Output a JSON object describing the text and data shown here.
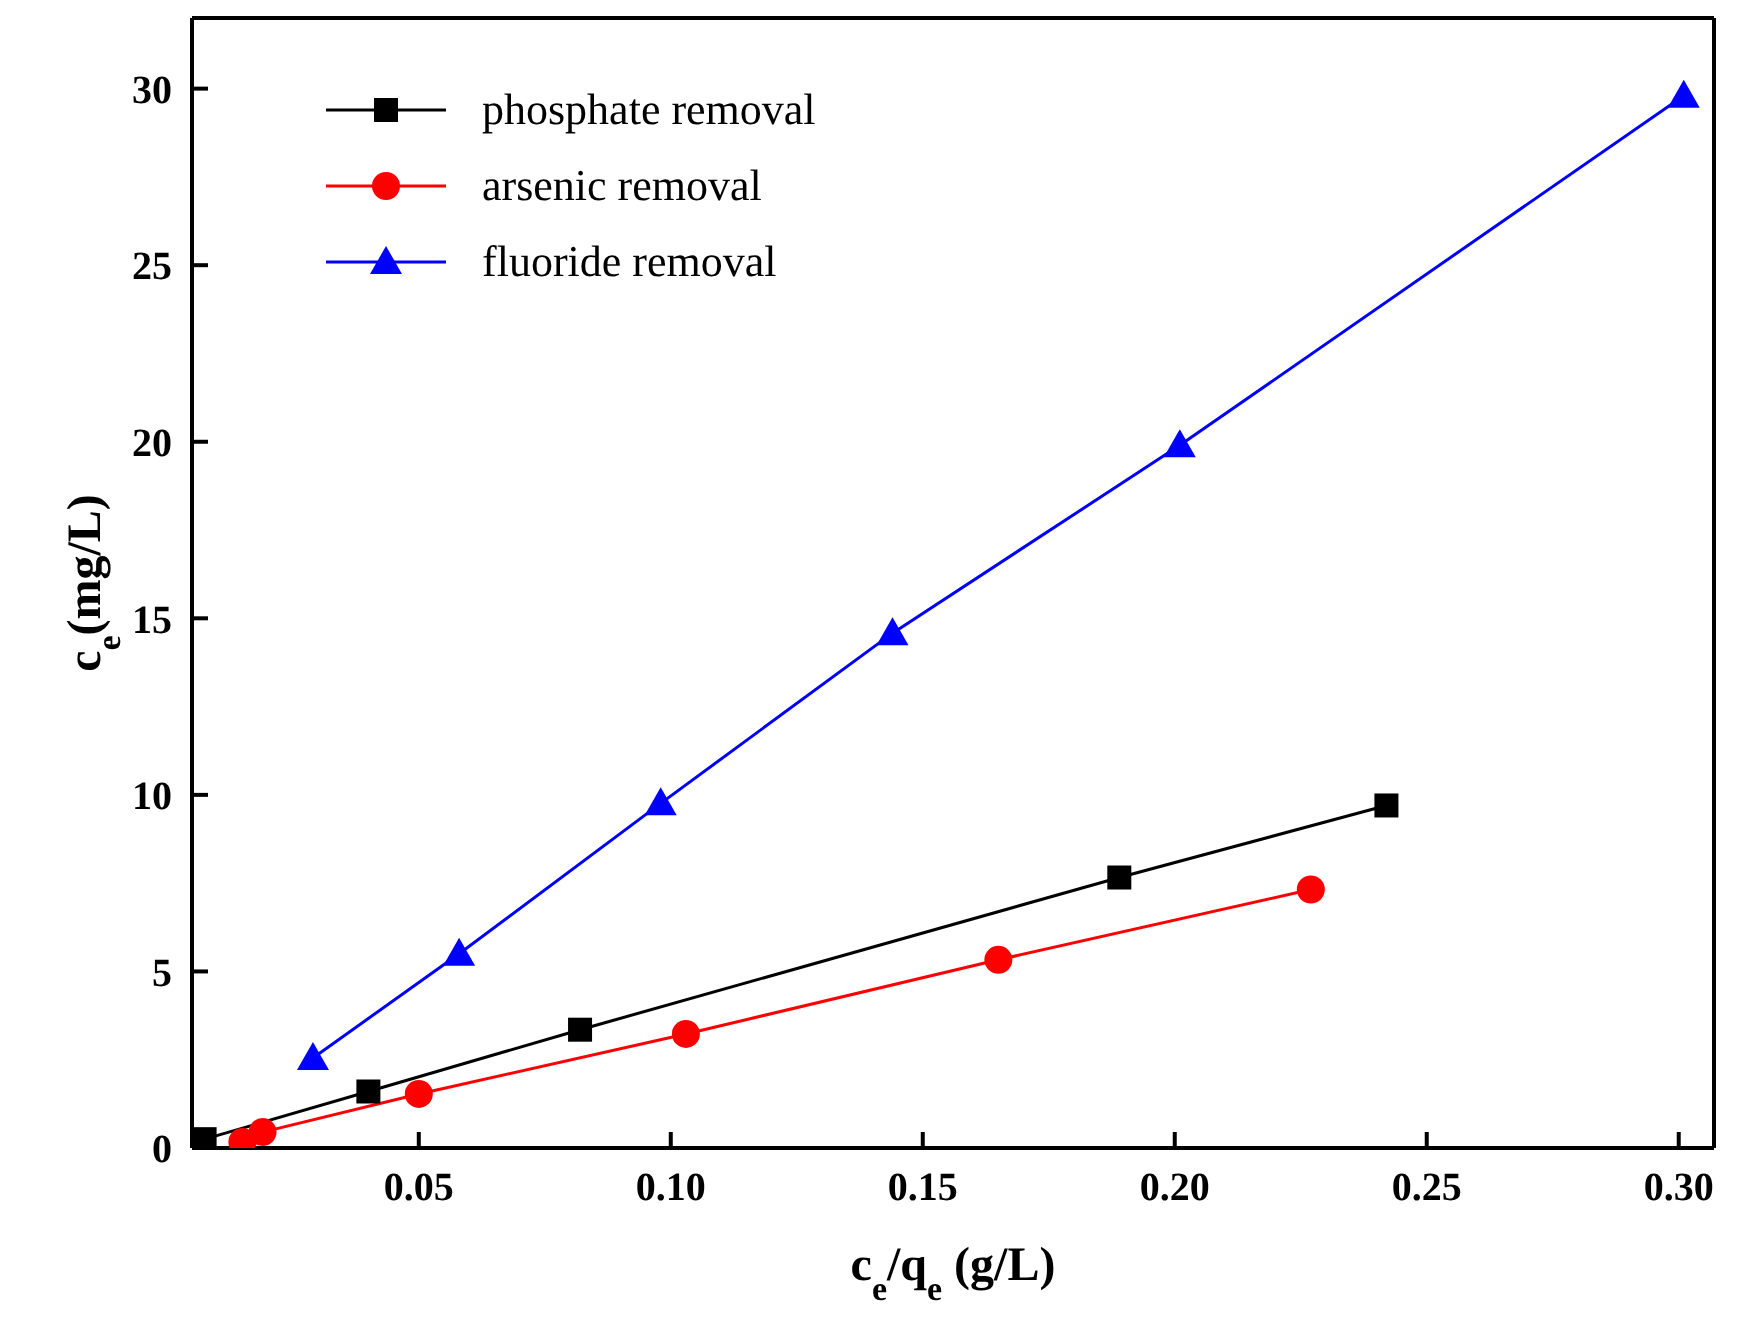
{
  "chart_data": {
    "type": "line",
    "xlabel": "c$_{e}$/q$_{e}$ (g/L)",
    "ylabel": "c$_{e}$(mg/L)",
    "xlim": [
      0.005,
      0.307
    ],
    "xticks": [
      0.05,
      {
        "value": 0.1,
        "label": "0.10"
      },
      0.15,
      {
        "value": 0.2,
        "label": "0.20"
      },
      0.25,
      {
        "value": 0.3,
        "label": "0.30"
      }
    ],
    "ylim": [
      0,
      32
    ],
    "yticks": [
      0,
      5,
      10,
      15,
      20,
      25,
      30
    ],
    "grid": false,
    "legend": "top left",
    "line_style": "solid",
    "series": [
      {
        "name": "phosphate removal",
        "color": "#000000",
        "marker": "square",
        "x": [
          0.0075,
          0.04,
          0.082,
          0.189,
          0.242
        ],
        "values": [
          0.25,
          1.6,
          3.35,
          7.66,
          9.7
        ]
      },
      {
        "name": "arsenic removal",
        "color": "#ff0000",
        "marker": "circle",
        "x": [
          0.015,
          0.019,
          0.05,
          0.103,
          0.165,
          0.227
        ],
        "values": [
          0.17,
          0.45,
          1.53,
          3.23,
          5.33,
          7.32
        ]
      },
      {
        "name": "fluoride removal",
        "color": "#0000ff",
        "marker": "triangle",
        "x": [
          0.029,
          0.058,
          0.098,
          0.144,
          0.201,
          0.301
        ],
        "values": [
          2.55,
          5.5,
          9.76,
          14.58,
          19.9,
          29.8
        ]
      }
    ]
  }
}
